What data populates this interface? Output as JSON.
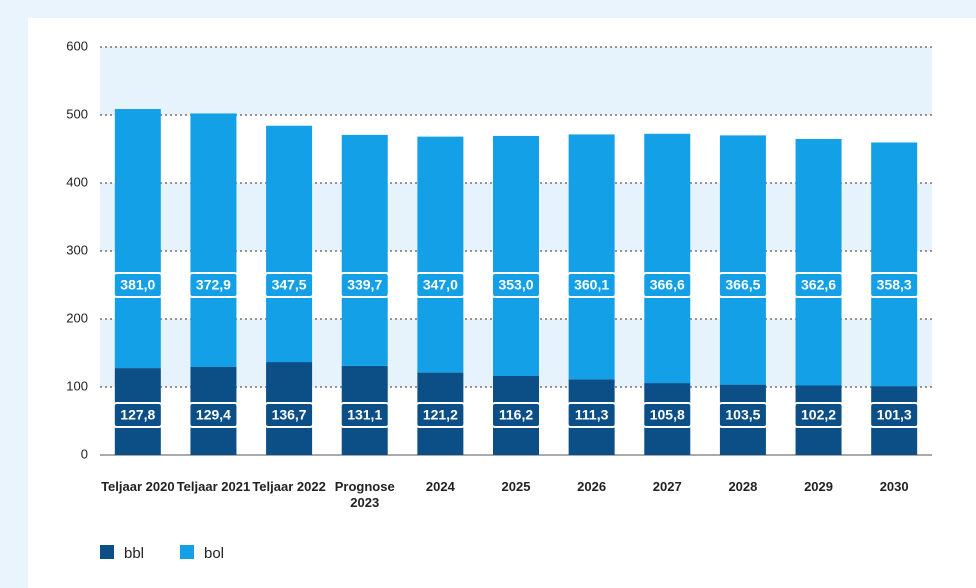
{
  "chart_data": {
    "type": "stacked-bar",
    "categories": [
      "Teljaar 2020",
      "Teljaar 2021",
      "Teljaar 2022",
      "Prognose 2023",
      "2024",
      "2025",
      "2026",
      "2027",
      "2028",
      "2029",
      "2030"
    ],
    "series": [
      {
        "name": "bbl",
        "color": "#0b4f86",
        "values": [
          127.8,
          129.4,
          136.7,
          131.1,
          121.2,
          116.2,
          111.3,
          105.8,
          103.5,
          102.2,
          101.3
        ],
        "value_labels": [
          "127,8",
          "129,4",
          "136,7",
          "131,1",
          "121,2",
          "116,2",
          "111,3",
          "105,8",
          "103,5",
          "102,2",
          "101,3"
        ]
      },
      {
        "name": "bol",
        "color": "#13a0e6",
        "values": [
          381.0,
          372.9,
          347.5,
          339.7,
          347.0,
          353.0,
          360.1,
          366.6,
          366.5,
          362.6,
          358.3
        ],
        "value_labels": [
          "381,0",
          "372,9",
          "347,5",
          "339,7",
          "347,0",
          "353,0",
          "360,1",
          "366,6",
          "366,5",
          "362,6",
          "358,3"
        ]
      }
    ],
    "ylim": [
      0,
      600
    ],
    "yticks": [
      0,
      100,
      200,
      300,
      400,
      500,
      600
    ],
    "grid": true,
    "legend": "bottom-left"
  }
}
